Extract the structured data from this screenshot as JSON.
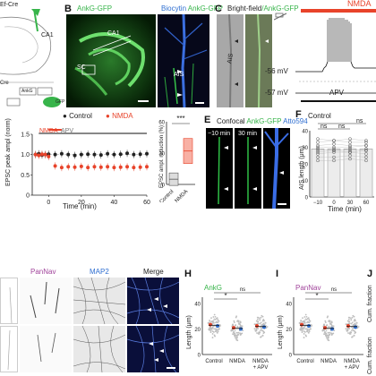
{
  "panels": {
    "A": {
      "cre_label": "Ef-Cre",
      "region": "CA1",
      "construct1": "AnkG",
      "construct2": "GFP",
      "cre_prefix": "Cre"
    },
    "B": {
      "letter": "B",
      "title": "AnkG-GFP",
      "title2_part1": "Biocytin",
      "title2_part2": "AnkG-GFP",
      "label_ca1": "CA1",
      "label_sc": "SC",
      "label_ais": "AIS"
    },
    "C": {
      "letter": "C",
      "title_part1": "Bright-field",
      "title_part2": "/AnkG-GFP",
      "label_ais": "AIS",
      "nmda_label": "NMDA",
      "v1": "-56 mV",
      "v2": "-57 mV",
      "apv_label": "APV"
    },
    "D": {
      "legend_control": "Control",
      "legend_nmda": "NMDA",
      "tag_nmda": "NMDA",
      "tag_apv": "APV",
      "ylabel": "EPSC peak ampl (norm)",
      "xlabel": "Time (min)",
      "y_ticks": [
        "1.5",
        "1.0",
        "0.5",
        "0"
      ],
      "x_ticks": [
        "0",
        "20",
        "40",
        "60"
      ],
      "box_ylabel": "EPSC ampl. reduction (%)",
      "box_ticks": [
        "60",
        "30",
        "0"
      ],
      "box_signif": "***",
      "box_cats": [
        "Control",
        "NMDA"
      ]
    },
    "E": {
      "letter": "E",
      "title_part1": "Confocal",
      "title_part2": "AnkG-GFP",
      "title_part3": "Atto594",
      "t1": "−10 min",
      "t2": "30 min"
    },
    "F": {
      "letter": "F",
      "title": "Control",
      "ylabel": "AIS length (μm)",
      "xlabel": "Time (min)",
      "y_ticks": [
        "40",
        "30",
        "20",
        "10",
        "0"
      ],
      "x_cats": [
        "−10",
        "0",
        "30",
        "60"
      ],
      "ns1": "ns",
      "ns2": "ns",
      "ns3": "ns"
    },
    "G": {
      "title1": "PanNav",
      "title2": "MAP2",
      "title3": "Merge"
    },
    "H": {
      "letter": "H",
      "title": "AnkG",
      "ylabel": "Length (μm)",
      "y_ticks": [
        "40",
        "20",
        "0"
      ],
      "cats": [
        "Control",
        "NMDA",
        "NMDA",
        "+ APV"
      ],
      "sig": "*",
      "ns": "ns"
    },
    "I": {
      "letter": "I",
      "title": "PanNav",
      "ylabel": "Length (μm)",
      "y_ticks": [
        "40",
        "20",
        "0"
      ],
      "cats": [
        "Control",
        "NMDA",
        "NMDA",
        "+ APV"
      ],
      "sig": "*",
      "ns": "ns"
    },
    "J": {
      "letter": "J",
      "ylabel1": "Cum. fraction",
      "ylabel2": "Cum. fraction"
    }
  },
  "chart_data": [
    {
      "panel": "D",
      "type": "scatter",
      "xlabel": "Time (min)",
      "ylabel": "EPSC peak ampl (norm)",
      "xlim": [
        -10,
        60
      ],
      "ylim": [
        0,
        1.5
      ],
      "series": [
        {
          "name": "Control",
          "color": "#222222",
          "x": [
            -8,
            -6,
            -4,
            -2,
            0,
            4,
            8,
            12,
            16,
            20,
            24,
            28,
            32,
            36,
            40,
            44,
            48,
            52,
            56,
            60
          ],
          "y": [
            1.0,
            1.02,
            0.99,
            1.0,
            1.01,
            1.0,
            1.02,
            1.0,
            0.98,
            1.0,
            1.01,
            1.0,
            0.99,
            1.02,
            1.0,
            1.01,
            1.03,
            1.0,
            1.01,
            1.02
          ]
        },
        {
          "name": "NMDA",
          "color": "#e8432a",
          "x": [
            -8,
            -6,
            -4,
            -2,
            0,
            4,
            8,
            12,
            16,
            20,
            24,
            28,
            32,
            36,
            40,
            44,
            48,
            52,
            56,
            60
          ],
          "y": [
            1.0,
            0.98,
            1.01,
            1.0,
            0.95,
            0.72,
            0.68,
            0.7,
            0.69,
            0.71,
            0.68,
            0.7,
            0.69,
            0.7,
            0.68,
            0.69,
            0.7,
            0.68,
            0.69,
            0.7
          ]
        }
      ]
    },
    {
      "panel": "D-box",
      "type": "bar",
      "categories": [
        "Control",
        "NMDA"
      ],
      "values": [
        5,
        32
      ],
      "ylabel": "EPSC ampl. reduction (%)",
      "ylim": [
        0,
        60
      ]
    },
    {
      "panel": "F",
      "type": "bar",
      "categories": [
        "−10",
        "0",
        "30",
        "60"
      ],
      "values": [
        29,
        29,
        29,
        29
      ],
      "ylabel": "AIS length (μm)",
      "xlabel": "Time (min)",
      "ylim": [
        0,
        40
      ]
    },
    {
      "panel": "H",
      "type": "scatter",
      "title": "AnkG",
      "categories": [
        "Control",
        "NMDA",
        "NMDA + APV"
      ],
      "values": [
        23,
        20.5,
        22
      ],
      "ylabel": "Length (μm)",
      "ylim": [
        0,
        45
      ]
    },
    {
      "panel": "I",
      "type": "scatter",
      "title": "PanNav",
      "categories": [
        "Control",
        "NMDA",
        "NMDA + APV"
      ],
      "values": [
        23,
        20.5,
        22
      ],
      "ylabel": "Length (μm)",
      "ylim": [
        0,
        45
      ]
    }
  ]
}
